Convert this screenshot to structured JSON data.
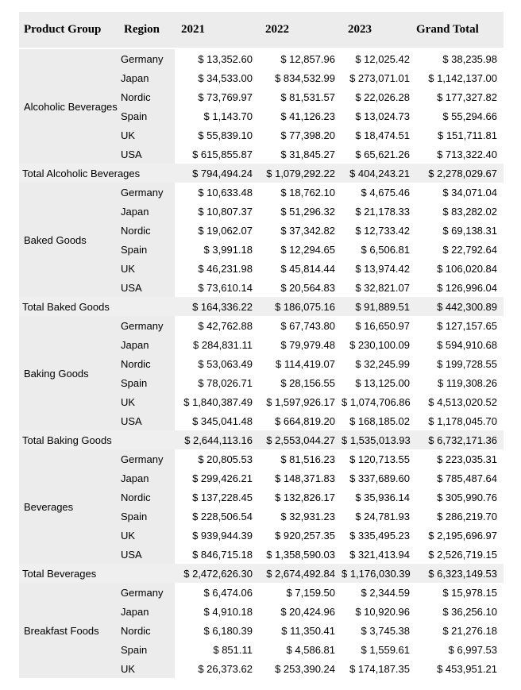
{
  "table": {
    "columns": [
      "Product Group",
      "Region",
      "2021",
      "2022",
      "2023",
      "Grand Total"
    ],
    "groups": [
      {
        "name": "Alcoholic Beverages",
        "rows": [
          {
            "region": "Germany",
            "values": [
              "$ 13,352.60",
              "$ 12,857.96",
              "$ 12,025.42",
              "$ 38,235.98"
            ]
          },
          {
            "region": "Japan",
            "values": [
              "$ 34,533.00",
              "$ 834,532.99",
              "$ 273,071.01",
              "$ 1,142,137.00"
            ]
          },
          {
            "region": "Nordic",
            "values": [
              "$ 73,769.97",
              "$ 81,531.57",
              "$ 22,026.28",
              "$ 177,327.82"
            ]
          },
          {
            "region": "Spain",
            "values": [
              "$ 1,143.70",
              "$ 41,126.23",
              "$ 13,024.73",
              "$ 55,294.66"
            ]
          },
          {
            "region": "UK",
            "values": [
              "$ 55,839.10",
              "$ 77,398.20",
              "$ 18,474.51",
              "$ 151,711.81"
            ]
          },
          {
            "region": "USA",
            "values": [
              "$ 615,855.87",
              "$ 31,845.27",
              "$ 65,621.26",
              "$ 713,322.40"
            ]
          }
        ],
        "total": {
          "label": "Total Alcoholic Beverages",
          "values": [
            "$ 794,494.24",
            "$ 1,079,292.22",
            "$ 404,243.21",
            "$ 2,278,029.67"
          ]
        }
      },
      {
        "name": "Baked Goods",
        "rows": [
          {
            "region": "Germany",
            "values": [
              "$ 10,633.48",
              "$ 18,762.10",
              "$ 4,675.46",
              "$ 34,071.04"
            ]
          },
          {
            "region": "Japan",
            "values": [
              "$ 10,807.37",
              "$ 51,296.32",
              "$ 21,178.33",
              "$ 83,282.02"
            ]
          },
          {
            "region": "Nordic",
            "values": [
              "$ 19,062.07",
              "$ 37,342.82",
              "$ 12,733.42",
              "$ 69,138.31"
            ]
          },
          {
            "region": "Spain",
            "values": [
              "$ 3,991.18",
              "$ 12,294.65",
              "$ 6,506.81",
              "$ 22,792.64"
            ]
          },
          {
            "region": "UK",
            "values": [
              "$ 46,231.98",
              "$ 45,814.44",
              "$ 13,974.42",
              "$ 106,020.84"
            ]
          },
          {
            "region": "USA",
            "values": [
              "$ 73,610.14",
              "$ 20,564.83",
              "$ 32,821.07",
              "$ 126,996.04"
            ]
          }
        ],
        "total": {
          "label": "Total Baked Goods",
          "values": [
            "$ 164,336.22",
            "$ 186,075.16",
            "$ 91,889.51",
            "$ 442,300.89"
          ]
        }
      },
      {
        "name": "Baking Goods",
        "rows": [
          {
            "region": "Germany",
            "values": [
              "$ 42,762.88",
              "$ 67,743.80",
              "$ 16,650.97",
              "$ 127,157.65"
            ]
          },
          {
            "region": "Japan",
            "values": [
              "$ 284,831.11",
              "$ 79,979.48",
              "$ 230,100.09",
              "$ 594,910.68"
            ]
          },
          {
            "region": "Nordic",
            "values": [
              "$ 53,063.49",
              "$ 114,419.07",
              "$ 32,245.99",
              "$ 199,728.55"
            ]
          },
          {
            "region": "Spain",
            "values": [
              "$ 78,026.71",
              "$ 28,156.55",
              "$ 13,125.00",
              "$ 119,308.26"
            ]
          },
          {
            "region": "UK",
            "values": [
              "$ 1,840,387.49",
              "$ 1,597,926.17",
              "$ 1,074,706.86",
              "$ 4,513,020.52"
            ]
          },
          {
            "region": "USA",
            "values": [
              "$ 345,041.48",
              "$ 664,819.20",
              "$ 168,185.02",
              "$ 1,178,045.70"
            ]
          }
        ],
        "total": {
          "label": "Total Baking Goods",
          "values": [
            "$ 2,644,113.16",
            "$ 2,553,044.27",
            "$ 1,535,013.93",
            "$ 6,732,171.36"
          ]
        }
      },
      {
        "name": "Beverages",
        "rows": [
          {
            "region": "Germany",
            "values": [
              "$ 20,805.53",
              "$ 81,516.23",
              "$ 120,713.55",
              "$ 223,035.31"
            ]
          },
          {
            "region": "Japan",
            "values": [
              "$ 299,426.21",
              "$ 148,371.83",
              "$ 337,689.60",
              "$ 785,487.64"
            ]
          },
          {
            "region": "Nordic",
            "values": [
              "$ 137,228.45",
              "$ 132,826.17",
              "$ 35,936.14",
              "$ 305,990.76"
            ]
          },
          {
            "region": "Spain",
            "values": [
              "$ 228,506.54",
              "$ 32,931.23",
              "$ 24,781.93",
              "$ 286,219.70"
            ]
          },
          {
            "region": "UK",
            "values": [
              "$ 939,944.39",
              "$ 920,257.35",
              "$ 335,495.23",
              "$ 2,195,696.97"
            ]
          },
          {
            "region": "USA",
            "values": [
              "$ 846,715.18",
              "$ 1,358,590.03",
              "$ 321,413.94",
              "$ 2,526,719.15"
            ]
          }
        ],
        "total": {
          "label": "Total Beverages",
          "values": [
            "$ 2,472,626.30",
            "$ 2,674,492.84",
            "$ 1,176,030.39",
            "$ 6,323,149.53"
          ]
        }
      },
      {
        "name": "Breakfast Foods",
        "rows": [
          {
            "region": "Germany",
            "values": [
              "$ 6,474.06",
              "$ 7,159.50",
              "$ 2,344.59",
              "$ 15,978.15"
            ]
          },
          {
            "region": "Japan",
            "values": [
              "$ 4,910.18",
              "$ 20,424.96",
              "$ 10,920.96",
              "$ 36,256.10"
            ]
          },
          {
            "region": "Nordic",
            "values": [
              "$ 6,180.39",
              "$ 11,350.41",
              "$ 3,745.38",
              "$ 21,276.18"
            ]
          },
          {
            "region": "Spain",
            "values": [
              "$ 851.11",
              "$ 4,586.81",
              "$ 1,559.61",
              "$ 6,997.53"
            ]
          },
          {
            "region": "UK",
            "values": [
              "$ 26,373.62",
              "$ 253,390.24",
              "$ 174,187.35",
              "$ 453,951.21"
            ]
          }
        ],
        "total": null
      }
    ]
  },
  "colors": {
    "header_bg": "#ececec",
    "row_header_bg": "#ececec",
    "total_row_bg": "#efefef",
    "value_cell_bg": "#ffffff",
    "text": "#000000"
  }
}
